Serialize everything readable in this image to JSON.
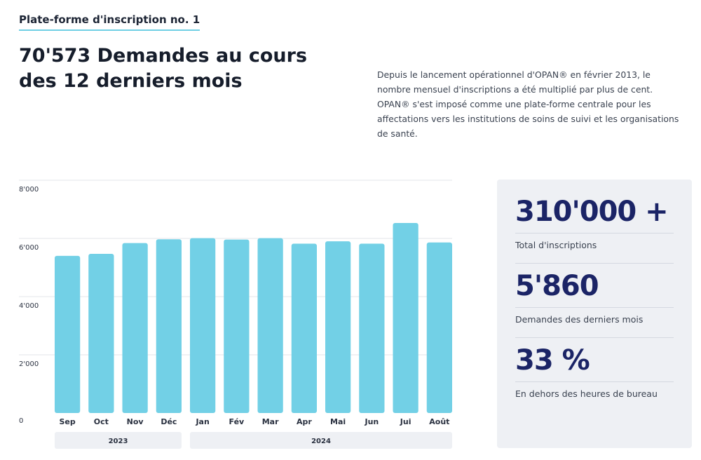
{
  "header": {
    "eyebrow": "Plate-forme d'inscription no. 1",
    "headline": "70'573 Demandes au cours des 12 derniers mois",
    "intro": "Depuis le lancement opérationnel d'OPAN® en février 2013, le nombre mensuel d'inscriptions a été multiplié par plus de cent. OPAN® s'est imposé comme une plate-forme centrale pour les affectations vers les institutions de soins de suivi et les organisations de santé."
  },
  "stats": [
    {
      "value": "310'000 +",
      "label": "Total d'inscriptions"
    },
    {
      "value": "5'860",
      "label": "Demandes des derniers mois"
    },
    {
      "value": "33 %",
      "label": "En dehors des heures de bureau"
    }
  ],
  "colors": {
    "bar": "#72d0e6",
    "accent": "#1b2466",
    "panel": "#eef0f4"
  },
  "chart_data": {
    "type": "bar",
    "categories": [
      "Sep",
      "Oct",
      "Nov",
      "Déc",
      "Jan",
      "Fév",
      "Mar",
      "Apr",
      "Mai",
      "Jun",
      "Jui",
      "Août"
    ],
    "values": [
      5400,
      5470,
      5840,
      5970,
      6010,
      5960,
      6010,
      5820,
      5900,
      5820,
      6530,
      5860
    ],
    "ylim": [
      0,
      8000
    ],
    "yticks": [
      0,
      2000,
      4000,
      6000,
      8000
    ],
    "ytick_labels": [
      "0",
      "2'000",
      "4'000",
      "6'000",
      "8'000"
    ],
    "year_groups": [
      {
        "label": "2023",
        "from": 0,
        "to": 3
      },
      {
        "label": "2024",
        "from": 4,
        "to": 11
      }
    ],
    "grid": true
  }
}
